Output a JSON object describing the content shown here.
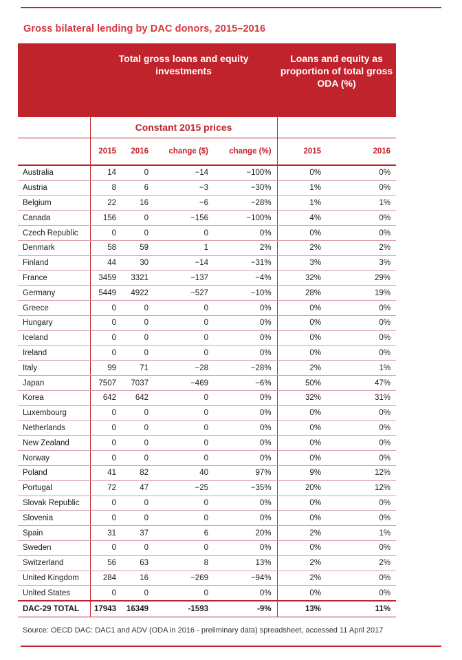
{
  "title": "Gross bilateral lending by DAC donors, 2015–2016",
  "header": {
    "group1": "Total gross loans and equity investments",
    "group2": "Loans and equity as proportion of total gross ODA (%)",
    "subheader": "Constant 2015 prices",
    "columns": [
      "2015",
      "2016",
      "change ($)",
      "change (%)",
      "2015",
      "2016"
    ]
  },
  "rows": [
    {
      "name": "Australia",
      "v": [
        "14",
        "0",
        "−14",
        "−100%",
        "0%",
        "0%"
      ]
    },
    {
      "name": "Austria",
      "v": [
        "8",
        "6",
        "−3",
        "−30%",
        "1%",
        "0%"
      ]
    },
    {
      "name": "Belgium",
      "v": [
        "22",
        "16",
        "−6",
        "−28%",
        "1%",
        "1%"
      ]
    },
    {
      "name": "Canada",
      "v": [
        "156",
        "0",
        "−156",
        "−100%",
        "4%",
        "0%"
      ]
    },
    {
      "name": "Czech Republic",
      "v": [
        "0",
        "0",
        "0",
        "0%",
        "0%",
        "0%"
      ]
    },
    {
      "name": "Denmark",
      "v": [
        "58",
        "59",
        "1",
        "2%",
        "2%",
        "2%"
      ]
    },
    {
      "name": "Finland",
      "v": [
        "44",
        "30",
        "−14",
        "−31%",
        "3%",
        "3%"
      ]
    },
    {
      "name": "France",
      "v": [
        "3459",
        "3321",
        "−137",
        "−4%",
        "32%",
        "29%"
      ]
    },
    {
      "name": "Germany",
      "v": [
        "5449",
        "4922",
        "−527",
        "−10%",
        "28%",
        "19%"
      ]
    },
    {
      "name": "Greece",
      "v": [
        "0",
        "0",
        "0",
        "0%",
        "0%",
        "0%"
      ]
    },
    {
      "name": "Hungary",
      "v": [
        "0",
        "0",
        "0",
        "0%",
        "0%",
        "0%"
      ]
    },
    {
      "name": "Iceland",
      "v": [
        "0",
        "0",
        "0",
        "0%",
        "0%",
        "0%"
      ]
    },
    {
      "name": "Ireland",
      "v": [
        "0",
        "0",
        "0",
        "0%",
        "0%",
        "0%"
      ]
    },
    {
      "name": "Italy",
      "v": [
        "99",
        "71",
        "−28",
        "−28%",
        "2%",
        "1%"
      ]
    },
    {
      "name": "Japan",
      "v": [
        "7507",
        "7037",
        "−469",
        "−6%",
        "50%",
        "47%"
      ]
    },
    {
      "name": "Korea",
      "v": [
        "642",
        "642",
        "0",
        "0%",
        "32%",
        "31%"
      ]
    },
    {
      "name": "Luxembourg",
      "v": [
        "0",
        "0",
        "0",
        "0%",
        "0%",
        "0%"
      ]
    },
    {
      "name": "Netherlands",
      "v": [
        "0",
        "0",
        "0",
        "0%",
        "0%",
        "0%"
      ]
    },
    {
      "name": "New Zealand",
      "v": [
        "0",
        "0",
        "0",
        "0%",
        "0%",
        "0%"
      ]
    },
    {
      "name": "Norway",
      "v": [
        "0",
        "0",
        "0",
        "0%",
        "0%",
        "0%"
      ]
    },
    {
      "name": "Poland",
      "v": [
        "41",
        "82",
        "40",
        "97%",
        "9%",
        "12%"
      ]
    },
    {
      "name": "Portugal",
      "v": [
        "72",
        "47",
        "−25",
        "−35%",
        "20%",
        "12%"
      ]
    },
    {
      "name": "Slovak Republic",
      "v": [
        "0",
        "0",
        "0",
        "0%",
        "0%",
        "0%"
      ]
    },
    {
      "name": "Slovenia",
      "v": [
        "0",
        "0",
        "0",
        "0%",
        "0%",
        "0%"
      ]
    },
    {
      "name": "Spain",
      "v": [
        "31",
        "37",
        "6",
        "20%",
        "2%",
        "1%"
      ]
    },
    {
      "name": "Sweden",
      "v": [
        "0",
        "0",
        "0",
        "0%",
        "0%",
        "0%"
      ]
    },
    {
      "name": "Switzerland",
      "v": [
        "56",
        "63",
        "8",
        "13%",
        "2%",
        "2%"
      ]
    },
    {
      "name": "United Kingdom",
      "v": [
        "284",
        "16",
        "−269",
        "−94%",
        "2%",
        "0%"
      ]
    },
    {
      "name": "United States",
      "v": [
        "0",
        "0",
        "0",
        "0%",
        "0%",
        "0%"
      ]
    }
  ],
  "total": {
    "name": "DAC-29 TOTAL",
    "v": [
      "17943",
      "16349",
      "-1593",
      "-9%",
      "13%",
      "11%"
    ]
  },
  "source": "Source: OECD DAC: DAC1 and ADV (ODA in 2016 - preliminary data) spreadsheet, accessed 11 April 2017"
}
